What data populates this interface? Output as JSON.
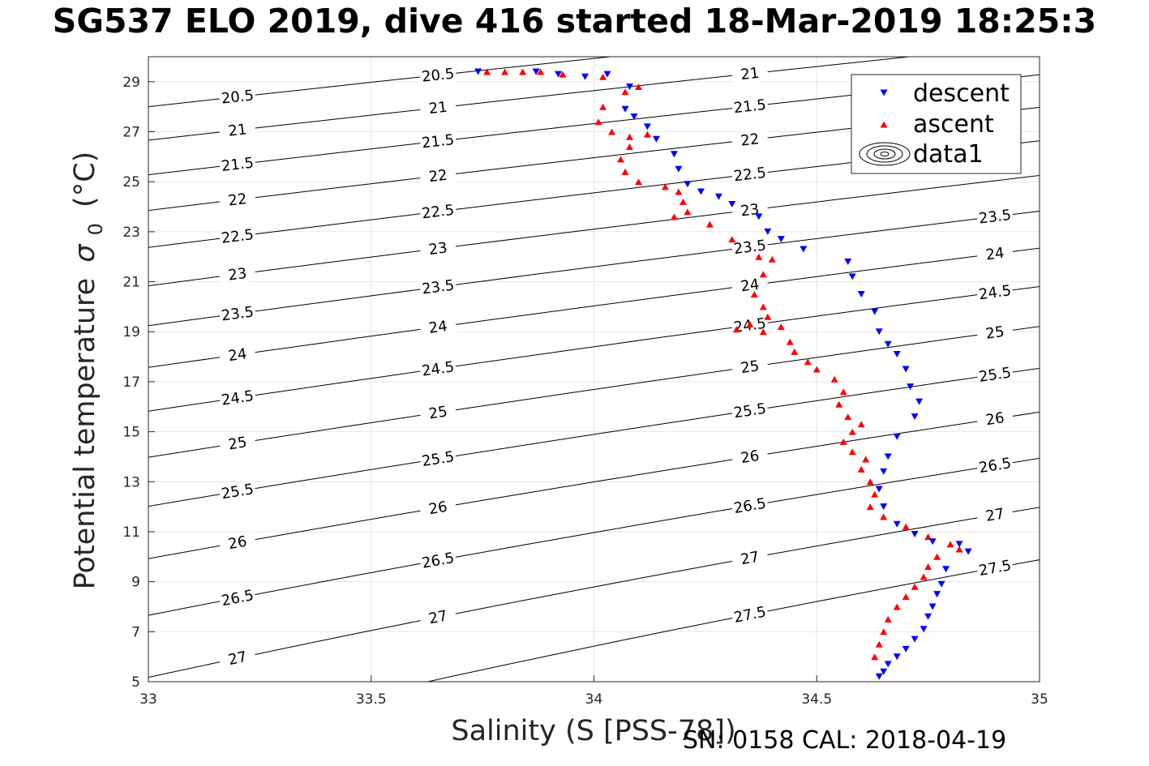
{
  "title": "SG537 ELO 2019, dive 416 started 18-Mar-2019 18:25:3",
  "footer": "SN: 0158  CAL: 2018-04-19",
  "chart_data": {
    "type": "scatter",
    "xlabel": "Salinity (S [PSS-78])",
    "ylabel": "Potential temperature",
    "ylabel_unit": "(°C)",
    "ylabel_symbol": "σ",
    "ylabel_subscript": "0",
    "xlim": [
      33,
      35
    ],
    "ylim": [
      5,
      30
    ],
    "x_ticks": [
      33,
      33.5,
      34,
      34.5,
      35
    ],
    "x_tick_labels": [
      "33",
      "33.5",
      "34",
      "34.5",
      "35"
    ],
    "y_ticks": [
      5,
      7,
      9,
      11,
      13,
      15,
      17,
      19,
      21,
      23,
      25,
      27,
      29
    ],
    "y_tick_labels": [
      "5",
      "7",
      "9",
      "11",
      "13",
      "15",
      "17",
      "19",
      "21",
      "23",
      "25",
      "27",
      "29"
    ],
    "grid": true,
    "legend_position": "top-right",
    "colors": {
      "descent": "#0000ff",
      "ascent": "#ff0000",
      "contour": "#000000"
    },
    "contours": {
      "levels": [
        20.5,
        21,
        21.5,
        22,
        22.5,
        23,
        23.5,
        24,
        24.5,
        25,
        25.5,
        26,
        26.5,
        27,
        27.5
      ],
      "labels": [
        "20.5",
        "21",
        "21.5",
        "22",
        "22.5",
        "23",
        "23.5",
        "24",
        "24.5",
        "25",
        "25.5",
        "26",
        "26.5",
        "27",
        "27.5"
      ]
    },
    "series": [
      {
        "name": "descent",
        "marker": "triangle-down",
        "x": [
          33.74,
          33.87,
          33.92,
          33.98,
          34.03,
          34.08,
          34.07,
          34.09,
          34.12,
          34.14,
          34.18,
          34.19,
          34.21,
          34.24,
          34.28,
          34.31,
          34.37,
          34.39,
          34.42,
          34.47,
          34.57,
          34.58,
          34.6,
          34.63,
          34.64,
          34.66,
          34.68,
          34.7,
          34.71,
          34.73,
          34.72,
          34.68,
          34.66,
          34.65,
          34.64,
          34.65,
          34.68,
          34.72,
          34.76,
          34.82,
          34.84,
          34.79,
          34.78,
          34.77,
          34.76,
          34.75,
          34.74,
          34.72,
          34.7,
          34.68,
          34.66,
          34.65,
          34.64
        ],
        "y": [
          29.4,
          29.4,
          29.3,
          29.2,
          29.3,
          28.8,
          27.9,
          27.6,
          27.2,
          26.7,
          26.1,
          25.5,
          24.9,
          24.6,
          24.4,
          24.1,
          23.6,
          23.0,
          22.7,
          22.3,
          21.8,
          21.2,
          20.5,
          19.8,
          19.0,
          18.5,
          18.1,
          17.5,
          16.8,
          16.2,
          15.6,
          14.8,
          14.0,
          13.4,
          12.7,
          12.0,
          11.3,
          10.9,
          10.6,
          10.5,
          10.2,
          9.5,
          8.9,
          8.5,
          8.0,
          7.6,
          7.1,
          6.7,
          6.3,
          6.0,
          5.7,
          5.4,
          5.2
        ]
      },
      {
        "name": "ascent",
        "marker": "triangle-up",
        "x": [
          33.76,
          33.8,
          33.84,
          33.88,
          33.93,
          34.02,
          34.1,
          34.07,
          34.02,
          34.01,
          34.04,
          34.08,
          34.12,
          34.08,
          34.06,
          34.07,
          34.1,
          34.16,
          34.19,
          34.2,
          34.18,
          34.21,
          34.26,
          34.31,
          34.37,
          34.4,
          34.38,
          34.36,
          34.38,
          34.39,
          34.35,
          34.32,
          34.38,
          34.42,
          34.44,
          34.45,
          34.48,
          34.5,
          34.54,
          34.56,
          34.55,
          34.57,
          34.6,
          34.58,
          34.56,
          34.58,
          34.61,
          34.6,
          34.62,
          34.63,
          34.62,
          34.65,
          34.7,
          34.75,
          34.8,
          34.82,
          34.77,
          34.75,
          34.74,
          34.72,
          34.7,
          34.68,
          34.66,
          34.65,
          34.64,
          34.63
        ],
        "y": [
          29.4,
          29.4,
          29.4,
          29.4,
          29.3,
          29.2,
          28.8,
          28.6,
          28.0,
          27.4,
          27.0,
          26.8,
          26.9,
          26.4,
          25.9,
          25.4,
          25.0,
          24.8,
          24.6,
          24.2,
          23.6,
          23.8,
          23.3,
          22.7,
          22.0,
          21.9,
          21.3,
          20.5,
          20.0,
          19.6,
          19.3,
          19.1,
          19.0,
          19.2,
          18.6,
          18.2,
          17.8,
          17.5,
          17.1,
          16.6,
          16.1,
          15.6,
          15.3,
          15.0,
          14.6,
          14.2,
          13.9,
          13.5,
          13.0,
          12.5,
          12.0,
          11.6,
          11.2,
          10.8,
          10.5,
          10.3,
          10.0,
          9.6,
          9.2,
          8.8,
          8.4,
          8.0,
          7.5,
          7.0,
          6.5,
          6.0
        ]
      }
    ],
    "legend": [
      "descent",
      "ascent",
      "data1"
    ]
  }
}
